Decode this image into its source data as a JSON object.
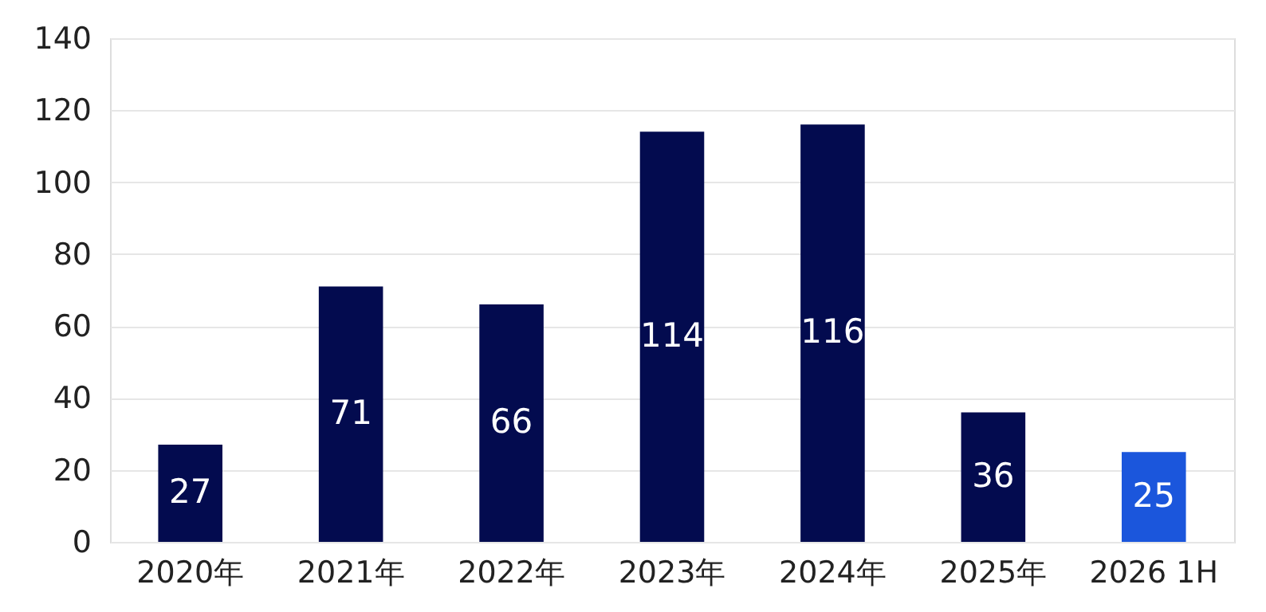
{
  "chart_data": {
    "type": "bar",
    "categories": [
      "2020年",
      "2021年",
      "2022年",
      "2023年",
      "2024年",
      "2025年",
      "2026 1H"
    ],
    "values": [
      27,
      71,
      66,
      114,
      116,
      36,
      25
    ],
    "colors": [
      "#030b4f",
      "#030b4f",
      "#030b4f",
      "#030b4f",
      "#030b4f",
      "#030b4f",
      "#1b56dc"
    ],
    "ylim": [
      0,
      140
    ],
    "yticks": [
      0,
      20,
      40,
      60,
      80,
      100,
      120,
      140
    ],
    "grid": "y",
    "data_labels": true
  }
}
